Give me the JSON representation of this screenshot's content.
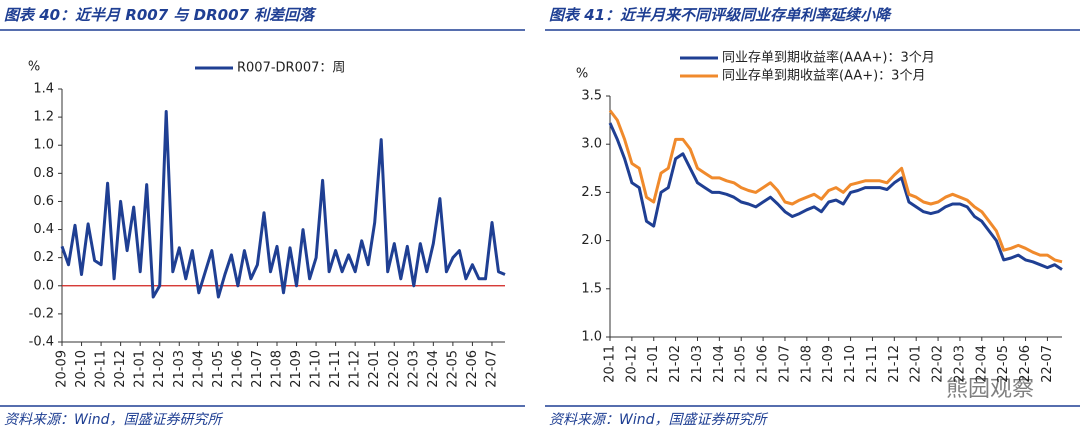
{
  "chart_data": [
    {
      "type": "line",
      "title": "图表 40：近半月 R007 与 DR007 利差回落",
      "source": "资料来源：Wind，国盛证券研究所",
      "y_label": "%",
      "categories": [
        "20-09",
        null,
        null,
        "20-10",
        null,
        null,
        "20-11",
        null,
        null,
        "20-12",
        null,
        null,
        "21-01",
        null,
        null,
        "21-02",
        null,
        null,
        "21-03",
        null,
        null,
        "21-04",
        null,
        null,
        "21-05",
        null,
        null,
        "21-06",
        null,
        null,
        "21-07",
        null,
        null,
        "21-08",
        null,
        null,
        "21-09",
        null,
        null,
        "21-10",
        null,
        null,
        "21-11",
        null,
        null,
        "21-12",
        null,
        null,
        "22-01",
        null,
        null,
        "22-02",
        null,
        null,
        "22-03",
        null,
        null,
        "22-04",
        null,
        null,
        "22-05",
        null,
        null,
        "22-06",
        null,
        null,
        "22-07",
        null,
        null
      ],
      "series": [
        {
          "name": "R007-DR007：周",
          "color": "#1f3f93",
          "values": [
            0.28,
            0.15,
            0.43,
            0.08,
            0.44,
            0.18,
            0.15,
            0.73,
            0.05,
            0.6,
            0.25,
            0.56,
            0.1,
            0.72,
            -0.08,
            0.0,
            1.24,
            0.1,
            0.27,
            0.05,
            0.25,
            -0.05,
            0.1,
            0.25,
            -0.08,
            0.08,
            0.22,
            0.0,
            0.25,
            0.05,
            0.15,
            0.52,
            0.1,
            0.28,
            -0.05,
            0.27,
            0.0,
            0.4,
            0.05,
            0.2,
            0.75,
            0.1,
            0.25,
            0.1,
            0.22,
            0.1,
            0.32,
            0.15,
            0.45,
            1.04,
            0.1,
            0.3,
            0.05,
            0.28,
            0.0,
            0.3,
            0.1,
            0.3,
            0.62,
            0.1,
            0.2,
            0.25,
            0.05,
            0.15,
            0.05,
            0.05,
            0.45,
            0.1,
            0.08
          ]
        }
      ],
      "ylim": [
        -0.4,
        1.4
      ],
      "yticks": [
        -0.4,
        -0.2,
        {
          "value": 0,
          "label": "0.0"
        },
        0.2,
        0.4,
        0.6,
        0.8,
        {
          "value": 1,
          "label": "1.0"
        },
        1.2,
        1.4
      ],
      "zero_line_color": "#d0201c",
      "legend": "top"
    },
    {
      "type": "line",
      "title": "图表 41：近半月来不同评级同业存单利率延续小降",
      "source": "资料来源：Wind，国盛证券研究所",
      "y_label": "%",
      "watermark": "熊园观察",
      "categories": [
        "20-11",
        null,
        null,
        "20-12",
        null,
        null,
        "21-01",
        null,
        null,
        "21-02",
        null,
        null,
        "21-03",
        null,
        null,
        "21-04",
        null,
        null,
        "21-05",
        null,
        null,
        "21-06",
        null,
        null,
        "21-07",
        null,
        null,
        "21-08",
        null,
        null,
        "21-09",
        null,
        null,
        "21-10",
        null,
        null,
        "21-11",
        null,
        null,
        "21-12",
        null,
        null,
        "22-01",
        null,
        null,
        "22-02",
        null,
        null,
        "22-03",
        null,
        null,
        "22-04",
        null,
        null,
        "22-05",
        null,
        null,
        "22-06",
        null,
        null,
        "22-07",
        null,
        null
      ],
      "series": [
        {
          "name": "同业存单到期收益率(AAA+)：3个月",
          "color": "#1f3f93",
          "values": [
            3.22,
            3.05,
            2.85,
            2.6,
            2.55,
            2.2,
            2.15,
            2.5,
            2.55,
            2.85,
            2.9,
            2.75,
            2.6,
            2.55,
            2.5,
            2.5,
            2.48,
            2.45,
            2.4,
            2.38,
            2.35,
            2.4,
            2.45,
            2.38,
            2.3,
            2.25,
            2.28,
            2.32,
            2.35,
            2.3,
            2.4,
            2.42,
            2.38,
            2.5,
            2.52,
            2.55,
            2.55,
            2.55,
            2.53,
            2.6,
            2.65,
            2.4,
            2.35,
            2.3,
            2.28,
            2.3,
            2.35,
            2.38,
            2.38,
            2.35,
            2.25,
            2.2,
            2.1,
            2.0,
            1.8,
            1.82,
            1.85,
            1.8,
            1.78,
            1.75,
            1.72,
            1.75,
            1.7
          ]
        },
        {
          "name": "同业存单到期收益率(AA+)：3个月",
          "color": "#f08a2c",
          "values": [
            3.35,
            3.25,
            3.05,
            2.8,
            2.75,
            2.45,
            2.4,
            2.7,
            2.75,
            3.05,
            3.05,
            2.95,
            2.75,
            2.7,
            2.65,
            2.65,
            2.62,
            2.6,
            2.55,
            2.52,
            2.5,
            2.55,
            2.6,
            2.52,
            2.4,
            2.38,
            2.42,
            2.45,
            2.48,
            2.43,
            2.52,
            2.55,
            2.5,
            2.58,
            2.6,
            2.62,
            2.62,
            2.62,
            2.6,
            2.68,
            2.75,
            2.48,
            2.45,
            2.4,
            2.38,
            2.4,
            2.45,
            2.48,
            2.45,
            2.42,
            2.35,
            2.3,
            2.2,
            2.1,
            1.9,
            1.92,
            1.95,
            1.92,
            1.88,
            1.85,
            1.85,
            1.8,
            1.78
          ]
        }
      ],
      "ylim": [
        1.0,
        3.5
      ],
      "yticks": [
        {
          "value": 1,
          "label": "1.0"
        },
        1.5,
        {
          "value": 2,
          "label": "2.0"
        },
        2.5,
        {
          "value": 3,
          "label": "3.0"
        },
        3.5
      ],
      "legend": "top-left"
    }
  ]
}
